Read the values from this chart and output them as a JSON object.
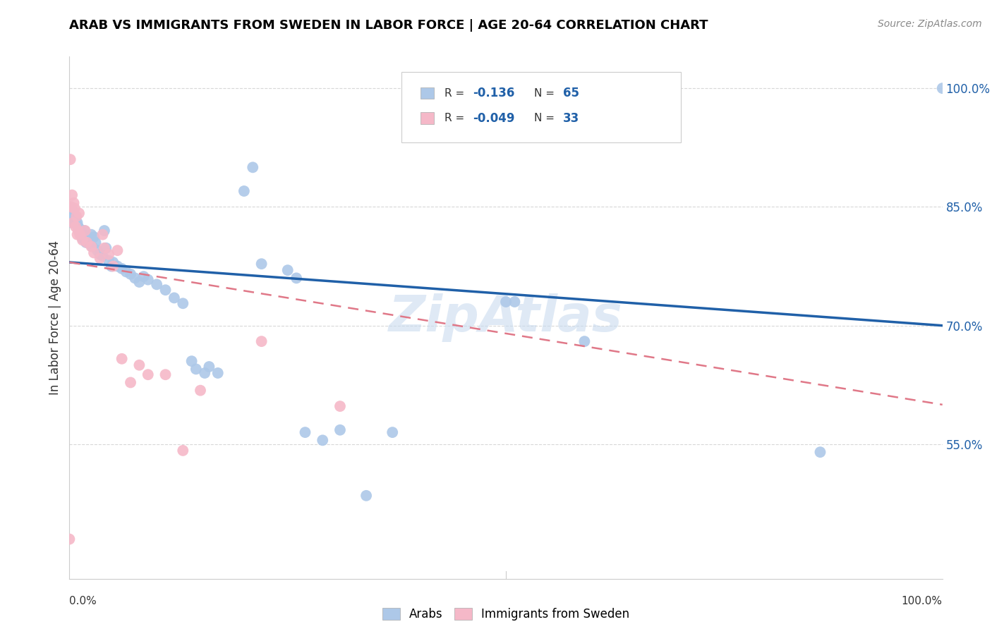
{
  "title": "ARAB VS IMMIGRANTS FROM SWEDEN IN LABOR FORCE | AGE 20-64 CORRELATION CHART",
  "source": "Source: ZipAtlas.com",
  "ylabel": "In Labor Force | Age 20-64",
  "watermark": "ZipAtlas",
  "legend_r_blue": "-0.136",
  "legend_n_blue": "65",
  "legend_r_pink": "-0.049",
  "legend_n_pink": "33",
  "blue_color": "#adc8e8",
  "pink_color": "#f5b8c8",
  "line_blue": "#2060a8",
  "line_pink": "#e07888",
  "blue_scatter": [
    [
      0.001,
      0.85
    ],
    [
      0.002,
      0.84
    ],
    [
      0.003,
      0.83
    ],
    [
      0.004,
      0.845
    ],
    [
      0.005,
      0.835
    ],
    [
      0.006,
      0.838
    ],
    [
      0.007,
      0.832
    ],
    [
      0.008,
      0.828
    ],
    [
      0.009,
      0.83
    ],
    [
      0.01,
      0.825
    ],
    [
      0.011,
      0.82
    ],
    [
      0.012,
      0.822
    ],
    [
      0.013,
      0.815
    ],
    [
      0.014,
      0.818
    ],
    [
      0.015,
      0.81
    ],
    [
      0.016,
      0.812
    ],
    [
      0.017,
      0.82
    ],
    [
      0.018,
      0.808
    ],
    [
      0.019,
      0.805
    ],
    [
      0.02,
      0.808
    ],
    [
      0.022,
      0.81
    ],
    [
      0.025,
      0.815
    ],
    [
      0.026,
      0.8
    ],
    [
      0.028,
      0.812
    ],
    [
      0.03,
      0.805
    ],
    [
      0.032,
      0.795
    ],
    [
      0.035,
      0.79
    ],
    [
      0.038,
      0.788
    ],
    [
      0.04,
      0.82
    ],
    [
      0.042,
      0.798
    ],
    [
      0.045,
      0.782
    ],
    [
      0.048,
      0.775
    ],
    [
      0.05,
      0.78
    ],
    [
      0.055,
      0.775
    ],
    [
      0.06,
      0.772
    ],
    [
      0.065,
      0.768
    ],
    [
      0.07,
      0.765
    ],
    [
      0.075,
      0.76
    ],
    [
      0.08,
      0.755
    ],
    [
      0.085,
      0.762
    ],
    [
      0.09,
      0.758
    ],
    [
      0.1,
      0.752
    ],
    [
      0.11,
      0.745
    ],
    [
      0.12,
      0.735
    ],
    [
      0.13,
      0.728
    ],
    [
      0.14,
      0.655
    ],
    [
      0.145,
      0.645
    ],
    [
      0.155,
      0.64
    ],
    [
      0.16,
      0.648
    ],
    [
      0.17,
      0.64
    ],
    [
      0.2,
      0.87
    ],
    [
      0.21,
      0.9
    ],
    [
      0.22,
      0.778
    ],
    [
      0.25,
      0.77
    ],
    [
      0.26,
      0.76
    ],
    [
      0.27,
      0.565
    ],
    [
      0.29,
      0.555
    ],
    [
      0.31,
      0.568
    ],
    [
      0.34,
      0.485
    ],
    [
      0.37,
      0.565
    ],
    [
      0.5,
      0.73
    ],
    [
      0.51,
      0.73
    ],
    [
      0.59,
      0.68
    ],
    [
      0.86,
      0.54
    ],
    [
      1.0,
      1.0
    ]
  ],
  "pink_scatter": [
    [
      0.0,
      0.43
    ],
    [
      0.001,
      0.91
    ],
    [
      0.002,
      0.85
    ],
    [
      0.003,
      0.865
    ],
    [
      0.004,
      0.83
    ],
    [
      0.005,
      0.855
    ],
    [
      0.006,
      0.848
    ],
    [
      0.007,
      0.825
    ],
    [
      0.008,
      0.838
    ],
    [
      0.009,
      0.815
    ],
    [
      0.01,
      0.82
    ],
    [
      0.011,
      0.842
    ],
    [
      0.012,
      0.815
    ],
    [
      0.015,
      0.808
    ],
    [
      0.018,
      0.82
    ],
    [
      0.02,
      0.805
    ],
    [
      0.025,
      0.8
    ],
    [
      0.028,
      0.792
    ],
    [
      0.035,
      0.785
    ],
    [
      0.038,
      0.815
    ],
    [
      0.04,
      0.798
    ],
    [
      0.045,
      0.79
    ],
    [
      0.05,
      0.775
    ],
    [
      0.055,
      0.795
    ],
    [
      0.06,
      0.658
    ],
    [
      0.07,
      0.628
    ],
    [
      0.08,
      0.65
    ],
    [
      0.09,
      0.638
    ],
    [
      0.11,
      0.638
    ],
    [
      0.13,
      0.542
    ],
    [
      0.15,
      0.618
    ],
    [
      0.22,
      0.68
    ],
    [
      0.31,
      0.598
    ]
  ],
  "xmin": 0.0,
  "xmax": 1.0,
  "ymin": 0.38,
  "ymax": 1.04,
  "ytick_vals": [
    1.0,
    0.85,
    0.7,
    0.55
  ],
  "ytick_labels": [
    "100.0%",
    "85.0%",
    "70.0%",
    "55.0%"
  ],
  "blue_line_x": [
    0.0,
    1.0
  ],
  "blue_line_y": [
    0.78,
    0.7
  ],
  "pink_line_x": [
    0.0,
    1.0
  ],
  "pink_line_y": [
    0.78,
    0.6
  ]
}
